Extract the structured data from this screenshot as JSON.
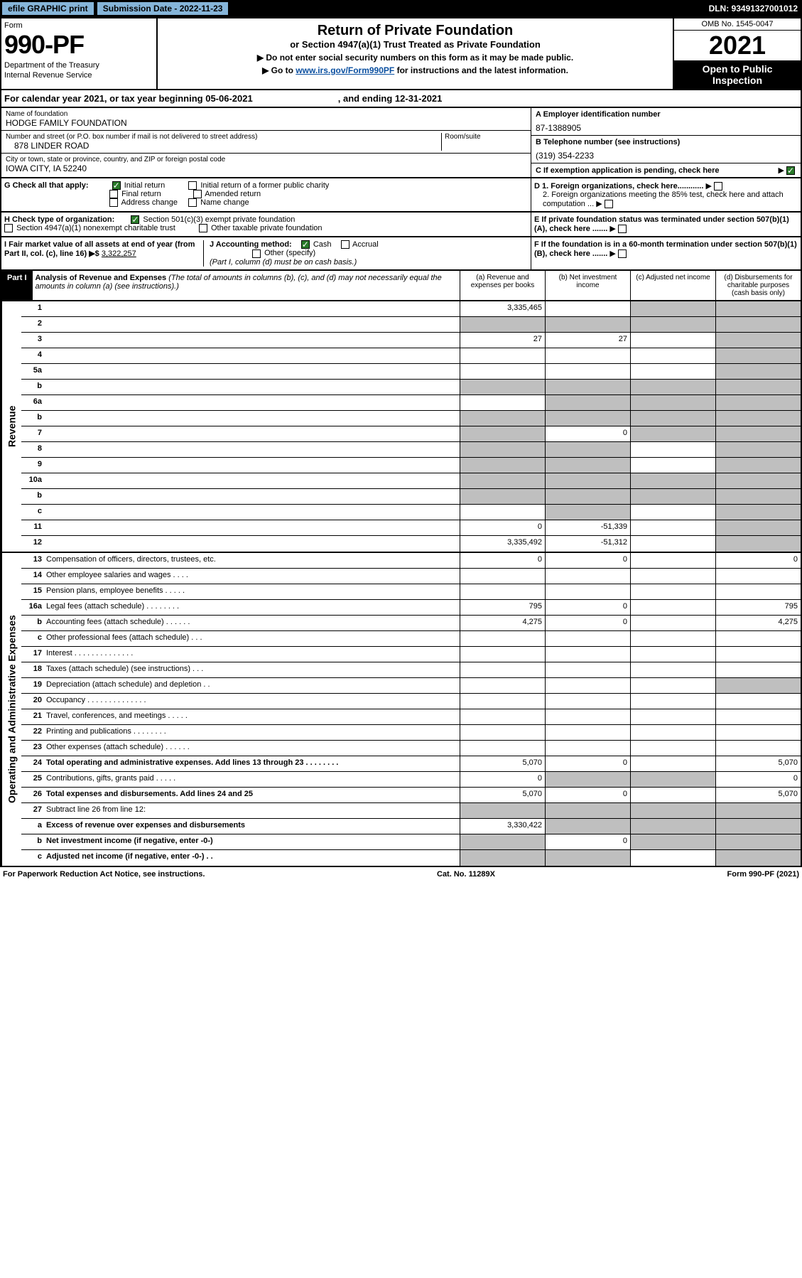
{
  "top": {
    "efile": "efile GRAPHIC print",
    "subdate_label": "Submission Date - 2022-11-23",
    "dln": "DLN: 93491327001012"
  },
  "header": {
    "form_label": "Form",
    "form_number": "990-PF",
    "dept1": "Department of the Treasury",
    "dept2": "Internal Revenue Service",
    "title": "Return of Private Foundation",
    "subtitle": "or Section 4947(a)(1) Trust Treated as Private Foundation",
    "instr1": "▶ Do not enter social security numbers on this form as it may be made public.",
    "instr2": "▶ Go to ",
    "instr2_link": "www.irs.gov/Form990PF",
    "instr2_rest": " for instructions and the latest information.",
    "omb": "OMB No. 1545-0047",
    "year": "2021",
    "inspection": "Open to Public Inspection"
  },
  "calyear": {
    "text1": "For calendar year 2021, or tax year beginning 05-06-2021",
    "text2": ", and ending 12-31-2021"
  },
  "info": {
    "name_label": "Name of foundation",
    "name": "HODGE FAMILY FOUNDATION",
    "addr_label": "Number and street (or P.O. box number if mail is not delivered to street address)",
    "addr": "878 LINDER ROAD",
    "room_label": "Room/suite",
    "city_label": "City or town, state or province, country, and ZIP or foreign postal code",
    "city": "IOWA CITY, IA  52240",
    "ein_label": "A Employer identification number",
    "ein": "87-1388905",
    "phone_label": "B Telephone number (see instructions)",
    "phone": "(319) 354-2233",
    "c_label": "C If exemption application is pending, check here"
  },
  "g": {
    "label": "G Check all that apply:",
    "initial": "Initial return",
    "initial_former": "Initial return of a former public charity",
    "final": "Final return",
    "amended": "Amended return",
    "addr_change": "Address change",
    "name_change": "Name change"
  },
  "h": {
    "label": "H Check type of organization:",
    "opt1": "Section 501(c)(3) exempt private foundation",
    "opt2": "Section 4947(a)(1) nonexempt charitable trust",
    "opt3": "Other taxable private foundation"
  },
  "i": {
    "label": "I Fair market value of all assets at end of year (from Part II, col. (c), line 16) ▶$",
    "val": "3,322,257"
  },
  "j": {
    "label": "J Accounting method:",
    "cash": "Cash",
    "accrual": "Accrual",
    "other": "Other (specify)",
    "note": "(Part I, column (d) must be on cash basis.)"
  },
  "d": {
    "d1": "D 1. Foreign organizations, check here............",
    "d2": "2. Foreign organizations meeting the 85% test, check here and attach computation ...",
    "e": "E  If private foundation status was terminated under section 507(b)(1)(A), check here .......",
    "f": "F  If the foundation is in a 60-month termination under section 507(b)(1)(B), check here ......."
  },
  "part1": {
    "badge": "Part I",
    "title": "Analysis of Revenue and Expenses",
    "sub": " (The total of amounts in columns (b), (c), and (d) may not necessarily equal the amounts in column (a) (see instructions).)",
    "col_a": "(a)  Revenue and expenses per books",
    "col_b": "(b)  Net investment income",
    "col_c": "(c)  Adjusted net income",
    "col_d": "(d)  Disbursements for charitable purposes (cash basis only)"
  },
  "sides": {
    "revenue": "Revenue",
    "expenses": "Operating and Administrative Expenses"
  },
  "rows": [
    {
      "n": "1",
      "d": "",
      "a": "3,335,465",
      "b": "",
      "c": "",
      "grey_b": false,
      "grey_c": true,
      "grey_d": true
    },
    {
      "n": "2",
      "d": "",
      "a": "",
      "b": "",
      "c": "",
      "grey_a": true,
      "grey_b": true,
      "grey_c": true,
      "grey_d": true
    },
    {
      "n": "3",
      "d": "",
      "a": "27",
      "b": "27",
      "c": "",
      "grey_d": true
    },
    {
      "n": "4",
      "d": "",
      "a": "",
      "b": "",
      "c": "",
      "grey_d": true
    },
    {
      "n": "5a",
      "d": "",
      "a": "",
      "b": "",
      "c": "",
      "grey_d": true
    },
    {
      "n": "b",
      "d": "",
      "a": "",
      "b": "",
      "c": "",
      "grey_a": true,
      "grey_b": true,
      "grey_c": true,
      "grey_d": true
    },
    {
      "n": "6a",
      "d": "",
      "a": "",
      "b": "",
      "c": "",
      "grey_b": true,
      "grey_c": true,
      "grey_d": true
    },
    {
      "n": "b",
      "d": "",
      "a": "",
      "b": "",
      "c": "",
      "grey_a": true,
      "grey_b": true,
      "grey_c": true,
      "grey_d": true
    },
    {
      "n": "7",
      "d": "",
      "a": "",
      "b": "0",
      "c": "",
      "grey_a": true,
      "grey_c": true,
      "grey_d": true
    },
    {
      "n": "8",
      "d": "",
      "a": "",
      "b": "",
      "c": "",
      "grey_a": true,
      "grey_b": true,
      "grey_d": true
    },
    {
      "n": "9",
      "d": "",
      "a": "",
      "b": "",
      "c": "",
      "grey_a": true,
      "grey_b": true,
      "grey_d": true
    },
    {
      "n": "10a",
      "d": "",
      "a": "",
      "b": "",
      "c": "",
      "grey_a": true,
      "grey_b": true,
      "grey_c": true,
      "grey_d": true
    },
    {
      "n": "b",
      "d": "",
      "a": "",
      "b": "",
      "c": "",
      "grey_a": true,
      "grey_b": true,
      "grey_c": true,
      "grey_d": true
    },
    {
      "n": "c",
      "d": "",
      "a": "",
      "b": "",
      "c": "",
      "grey_b": true,
      "grey_d": true
    },
    {
      "n": "11",
      "d": "",
      "a": "0",
      "b": "-51,339",
      "c": "",
      "grey_d": true
    },
    {
      "n": "12",
      "d": "",
      "a": "3,335,492",
      "b": "-51,312",
      "c": "",
      "bold": true,
      "grey_d": true
    }
  ],
  "exp_rows": [
    {
      "n": "13",
      "d": "0",
      "a": "0",
      "b": "0",
      "c": ""
    },
    {
      "n": "14",
      "d": "",
      "a": "",
      "b": "",
      "c": ""
    },
    {
      "n": "15",
      "d": "",
      "a": "",
      "b": "",
      "c": ""
    },
    {
      "n": "16a",
      "d": "795",
      "a": "795",
      "b": "0",
      "c": ""
    },
    {
      "n": "b",
      "d": "4,275",
      "a": "4,275",
      "b": "0",
      "c": ""
    },
    {
      "n": "c",
      "d": "",
      "a": "",
      "b": "",
      "c": ""
    },
    {
      "n": "17",
      "d": "",
      "a": "",
      "b": "",
      "c": ""
    },
    {
      "n": "18",
      "d": "",
      "a": "",
      "b": "",
      "c": ""
    },
    {
      "n": "19",
      "d": "",
      "a": "",
      "b": "",
      "c": "",
      "grey_d": true
    },
    {
      "n": "20",
      "d": "",
      "a": "",
      "b": "",
      "c": ""
    },
    {
      "n": "21",
      "d": "",
      "a": "",
      "b": "",
      "c": ""
    },
    {
      "n": "22",
      "d": "",
      "a": "",
      "b": "",
      "c": ""
    },
    {
      "n": "23",
      "d": "",
      "a": "",
      "b": "",
      "c": ""
    },
    {
      "n": "24",
      "d": "5,070",
      "a": "5,070",
      "b": "0",
      "c": "",
      "bold": true
    },
    {
      "n": "25",
      "d": "0",
      "a": "0",
      "b": "",
      "c": "",
      "grey_b": true,
      "grey_c": true
    },
    {
      "n": "26",
      "d": "5,070",
      "a": "5,070",
      "b": "0",
      "c": "",
      "bold": true
    },
    {
      "n": "27",
      "d": "",
      "a": "",
      "b": "",
      "c": "",
      "grey_a": true,
      "grey_b": true,
      "grey_c": true,
      "grey_d": true
    },
    {
      "n": "a",
      "d": "",
      "a": "3,330,422",
      "b": "",
      "c": "",
      "bold": true,
      "grey_b": true,
      "grey_c": true,
      "grey_d": true
    },
    {
      "n": "b",
      "d": "",
      "a": "",
      "b": "0",
      "c": "",
      "bold": true,
      "grey_a": true,
      "grey_c": true,
      "grey_d": true
    },
    {
      "n": "c",
      "d": "",
      "a": "",
      "b": "",
      "c": "",
      "bold": true,
      "grey_a": true,
      "grey_b": true,
      "grey_d": true
    }
  ],
  "footer": {
    "left": "For Paperwork Reduction Act Notice, see instructions.",
    "mid": "Cat. No. 11289X",
    "right": "Form 990-PF (2021)"
  }
}
